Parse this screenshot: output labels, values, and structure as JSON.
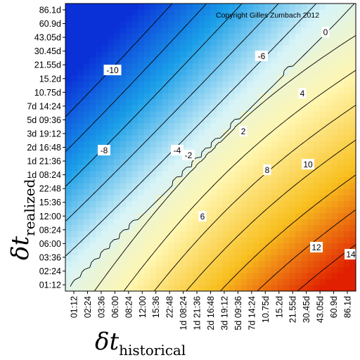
{
  "chart_data": {
    "type": "heatmap",
    "title": "",
    "annotation": "Copyright Gilles Zumbach 2012",
    "xlabel": {
      "symbol": "δt",
      "subscript": "historical"
    },
    "ylabel": {
      "symbol": "δt",
      "subscript": "realized"
    },
    "x_ticks": [
      "01:12",
      "02:24",
      "03:36",
      "06:00",
      "08:24",
      "12:00",
      "15:36",
      "22:48",
      "1d 08:24",
      "1d 21:36",
      "2d 16:48",
      "3d 19:12",
      "5d 09:36",
      "7d 14:24",
      "10.75d",
      "15.2d",
      "21.55d",
      "30.45d",
      "43.05d",
      "60.9d",
      "86.1d"
    ],
    "y_ticks": [
      "86.1d",
      "60.9d",
      "43.05d",
      "30.45d",
      "21.55d",
      "15.2d",
      "10.75d",
      "7d 14:24",
      "5d 09:36",
      "3d 19:12",
      "2d 16:48",
      "1d 21:36",
      "1d 08:24",
      "22:48",
      "15:36",
      "12:00",
      "08:24",
      "06:00",
      "03:36",
      "02:24",
      "01:12"
    ],
    "contour_levels": [
      -10,
      -8,
      -6,
      -4,
      -2,
      0,
      2,
      4,
      6,
      8,
      10,
      12,
      14
    ],
    "contour_labels": [
      "-10",
      "-8",
      "-6",
      "-4",
      "-2",
      "0",
      "2",
      "4",
      "6",
      "8",
      "10",
      "12",
      "14",
      "4",
      "6",
      "0",
      "6",
      "8",
      "-4"
    ],
    "colorscale": [
      "#0a30d8",
      "#1a9ee8",
      "#d8f4f8",
      "#fff6b0",
      "#f8c020",
      "#e02000"
    ],
    "value_range": [
      -12,
      15
    ],
    "grid": false
  }
}
